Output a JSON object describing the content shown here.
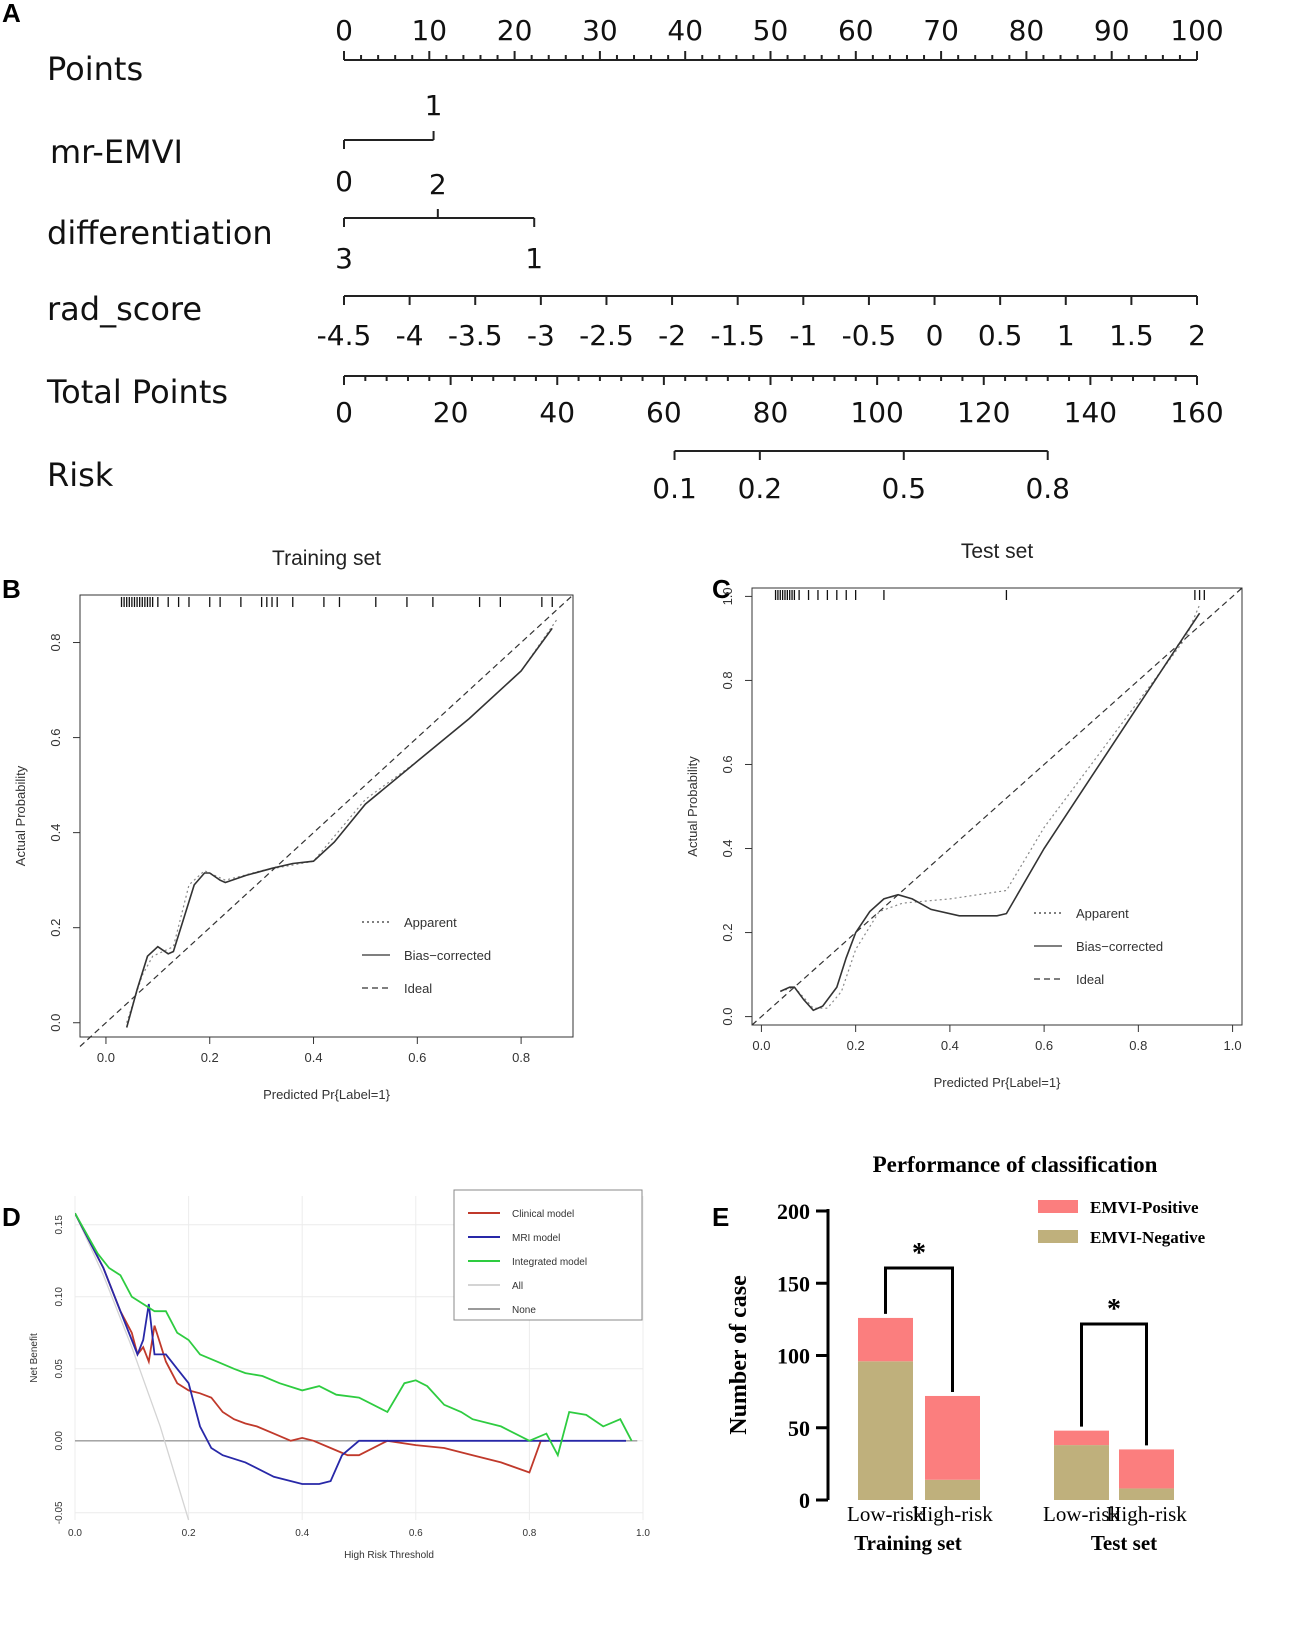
{
  "panels": {
    "a": "A",
    "b": "B",
    "c": "C",
    "d": "D",
    "e": "E"
  },
  "chart_data": [
    {
      "type": "nomogram",
      "rows": [
        {
          "label": "Points",
          "ticks": [
            "0",
            "10",
            "20",
            "30",
            "40",
            "50",
            "60",
            "70",
            "80",
            "90",
            "100"
          ]
        },
        {
          "label": "mr-EMVI",
          "above": [
            "1"
          ],
          "below": [
            "0"
          ]
        },
        {
          "label": "differentiation",
          "above": [
            "2"
          ],
          "below": [
            "3",
            "1"
          ]
        },
        {
          "label": "rad_score",
          "ticks": [
            "-4.5",
            "-4",
            "-3.5",
            "-3",
            "-2.5",
            "-2",
            "-1.5",
            "-1",
            "-0.5",
            "0",
            "0.5",
            "1",
            "1.5",
            "2"
          ]
        },
        {
          "label": "Total Points",
          "ticks": [
            "0",
            "20",
            "40",
            "60",
            "80",
            "100",
            "120",
            "140",
            "160"
          ]
        },
        {
          "label": "Risk",
          "ticks": [
            "0.1",
            "0.2",
            "0.5",
            "0.8"
          ]
        }
      ],
      "points_range": [
        0,
        100
      ],
      "mr_emvi_points": {
        "0": 0,
        "1": 10.5
      },
      "differentiation_points": {
        "3": 0,
        "2": 11,
        "1": 22.3
      },
      "total_points_range": [
        0,
        160
      ],
      "risk_total_points": {
        "0.1": 62,
        "0.2": 78,
        "0.5": 105,
        "0.8": 132
      }
    },
    {
      "type": "line",
      "title": "Training set",
      "xlabel": "Predicted Pr{Label=1}",
      "ylabel": "Actual Probability",
      "xlim": [
        -0.05,
        0.9
      ],
      "ylim": [
        -0.03,
        0.9
      ],
      "xticks": [
        "0.0",
        "0.2",
        "0.4",
        "0.6",
        "0.8"
      ],
      "yticks": [
        "0.0",
        "0.2",
        "0.4",
        "0.6",
        "0.8"
      ],
      "legend": [
        "Apparent",
        "Bias−corrected",
        "Ideal"
      ],
      "series": [
        {
          "name": "Apparent",
          "style": "dotted",
          "x": [
            0.04,
            0.07,
            0.09,
            0.11,
            0.13,
            0.16,
            0.19,
            0.23,
            0.3,
            0.4,
            0.5,
            0.6,
            0.7,
            0.8,
            0.87
          ],
          "y": [
            0.0,
            0.1,
            0.14,
            0.15,
            0.16,
            0.29,
            0.32,
            0.3,
            0.32,
            0.34,
            0.47,
            0.55,
            0.64,
            0.74,
            0.85
          ]
        },
        {
          "name": "Bias-corrected",
          "style": "solid",
          "x": [
            0.04,
            0.06,
            0.08,
            0.1,
            0.12,
            0.13,
            0.15,
            0.17,
            0.19,
            0.2,
            0.22,
            0.23,
            0.27,
            0.32,
            0.36,
            0.4,
            0.44,
            0.5,
            0.6,
            0.7,
            0.8,
            0.86
          ],
          "y": [
            -0.01,
            0.07,
            0.14,
            0.16,
            0.145,
            0.15,
            0.22,
            0.29,
            0.315,
            0.315,
            0.3,
            0.295,
            0.31,
            0.325,
            0.335,
            0.34,
            0.38,
            0.46,
            0.55,
            0.64,
            0.74,
            0.83
          ]
        },
        {
          "name": "Ideal",
          "style": "dashed",
          "x": [
            -0.05,
            0.9
          ],
          "y": [
            -0.05,
            0.9
          ]
        }
      ],
      "rug": [
        0.03,
        0.035,
        0.04,
        0.045,
        0.05,
        0.055,
        0.06,
        0.065,
        0.07,
        0.075,
        0.08,
        0.085,
        0.09,
        0.1,
        0.12,
        0.14,
        0.16,
        0.2,
        0.22,
        0.26,
        0.3,
        0.31,
        0.32,
        0.33,
        0.36,
        0.42,
        0.45,
        0.52,
        0.58,
        0.63,
        0.72,
        0.76,
        0.84,
        0.86
      ]
    },
    {
      "type": "line",
      "title": "Test set",
      "xlabel": "Predicted Pr{Label=1}",
      "ylabel": "Actual Probability",
      "xlim": [
        -0.02,
        1.02
      ],
      "ylim": [
        -0.02,
        1.02
      ],
      "xticks": [
        "0.0",
        "0.2",
        "0.4",
        "0.6",
        "0.8",
        "1.0"
      ],
      "yticks": [
        "0.0",
        "0.2",
        "0.4",
        "0.6",
        "0.8",
        "1.0"
      ],
      "legend": [
        "Apparent",
        "Bias−corrected",
        "Ideal"
      ],
      "series": [
        {
          "name": "Apparent",
          "style": "dotted",
          "x": [
            0.04,
            0.07,
            0.11,
            0.14,
            0.17,
            0.2,
            0.25,
            0.3,
            0.4,
            0.52,
            0.6,
            0.7,
            0.8,
            0.9,
            0.93
          ],
          "y": [
            0.06,
            0.07,
            0.02,
            0.02,
            0.06,
            0.16,
            0.25,
            0.27,
            0.28,
            0.3,
            0.45,
            0.6,
            0.75,
            0.9,
            0.98
          ]
        },
        {
          "name": "Bias-corrected",
          "style": "solid",
          "x": [
            0.04,
            0.06,
            0.07,
            0.09,
            0.11,
            0.13,
            0.16,
            0.18,
            0.2,
            0.23,
            0.26,
            0.29,
            0.32,
            0.36,
            0.42,
            0.5,
            0.52,
            0.6,
            0.7,
            0.8,
            0.9,
            0.93
          ],
          "y": [
            0.06,
            0.07,
            0.07,
            0.04,
            0.015,
            0.025,
            0.07,
            0.14,
            0.2,
            0.25,
            0.28,
            0.29,
            0.28,
            0.255,
            0.24,
            0.24,
            0.245,
            0.4,
            0.57,
            0.74,
            0.91,
            0.96
          ]
        },
        {
          "name": "Ideal",
          "style": "dashed",
          "x": [
            -0.02,
            1.02
          ],
          "y": [
            -0.02,
            1.02
          ]
        }
      ],
      "rug": [
        0.03,
        0.035,
        0.04,
        0.045,
        0.05,
        0.055,
        0.06,
        0.065,
        0.07,
        0.08,
        0.1,
        0.12,
        0.14,
        0.16,
        0.18,
        0.2,
        0.26,
        0.52,
        0.92,
        0.93,
        0.94
      ]
    },
    {
      "type": "line",
      "title": "",
      "xlabel": "High Risk Threshold",
      "ylabel": "Net Benefit",
      "xlim": [
        0,
        1
      ],
      "ylim": [
        -0.055,
        0.17
      ],
      "xticks": [
        "0.0",
        "0.2",
        "0.4",
        "0.6",
        "0.8",
        "1.0"
      ],
      "yticks": [
        "-0.05",
        "0.00",
        "0.05",
        "0.10",
        "0.15"
      ],
      "ytickvals": [
        -0.05,
        0,
        0.05,
        0.1,
        0.15
      ],
      "legend": [
        "Clinical model",
        "MRI model",
        "Integrated model",
        "All",
        "None"
      ],
      "series": [
        {
          "name": "Clinical model",
          "color": "#c0392b",
          "x": [
            0.0,
            0.05,
            0.08,
            0.1,
            0.11,
            0.12,
            0.13,
            0.14,
            0.16,
            0.18,
            0.2,
            0.22,
            0.24,
            0.26,
            0.28,
            0.3,
            0.32,
            0.35,
            0.38,
            0.4,
            0.42,
            0.45,
            0.48,
            0.5,
            0.55,
            0.6,
            0.65,
            0.7,
            0.75,
            0.8,
            0.82,
            0.83
          ],
          "y": [
            0.158,
            0.12,
            0.09,
            0.075,
            0.06,
            0.065,
            0.055,
            0.08,
            0.055,
            0.04,
            0.035,
            0.033,
            0.03,
            0.02,
            0.015,
            0.012,
            0.01,
            0.005,
            0.0,
            0.002,
            0.0,
            -0.005,
            -0.01,
            -0.01,
            0.0,
            -0.003,
            -0.005,
            -0.01,
            -0.015,
            -0.022,
            0.0,
            0.0
          ]
        },
        {
          "name": "MRI model",
          "color": "#2828a8",
          "x": [
            0.0,
            0.05,
            0.08,
            0.1,
            0.11,
            0.12,
            0.13,
            0.14,
            0.16,
            0.18,
            0.2,
            0.22,
            0.24,
            0.26,
            0.3,
            0.35,
            0.4,
            0.43,
            0.45,
            0.47,
            0.5,
            0.6,
            0.7,
            0.8,
            0.9,
            0.97
          ],
          "y": [
            0.158,
            0.12,
            0.09,
            0.07,
            0.06,
            0.07,
            0.095,
            0.06,
            0.06,
            0.05,
            0.04,
            0.01,
            -0.005,
            -0.01,
            -0.015,
            -0.025,
            -0.03,
            -0.03,
            -0.028,
            -0.01,
            0.0,
            0.0,
            0.0,
            0.0,
            0.0,
            0.0
          ]
        },
        {
          "name": "Integrated model",
          "color": "#2ecc40",
          "x": [
            0.0,
            0.04,
            0.06,
            0.08,
            0.1,
            0.12,
            0.14,
            0.16,
            0.18,
            0.2,
            0.22,
            0.25,
            0.28,
            0.3,
            0.33,
            0.36,
            0.4,
            0.43,
            0.46,
            0.5,
            0.55,
            0.58,
            0.6,
            0.62,
            0.65,
            0.68,
            0.7,
            0.75,
            0.8,
            0.83,
            0.85,
            0.87,
            0.9,
            0.93,
            0.96,
            0.98
          ],
          "y": [
            0.158,
            0.13,
            0.12,
            0.115,
            0.1,
            0.095,
            0.09,
            0.09,
            0.075,
            0.07,
            0.06,
            0.055,
            0.05,
            0.047,
            0.045,
            0.04,
            0.035,
            0.038,
            0.032,
            0.03,
            0.02,
            0.04,
            0.042,
            0.038,
            0.025,
            0.02,
            0.015,
            0.01,
            0.0,
            0.005,
            -0.01,
            0.02,
            0.018,
            0.01,
            0.015,
            0.0
          ]
        },
        {
          "name": "All",
          "color": "#d4d4d4",
          "x": [
            0.0,
            0.05,
            0.1,
            0.15,
            0.2
          ],
          "y": [
            0.158,
            0.115,
            0.065,
            0.01,
            -0.055
          ]
        },
        {
          "name": "None",
          "color": "#9a9a9a",
          "x": [
            0.0,
            0.99
          ],
          "y": [
            0.0,
            0.0
          ]
        }
      ]
    },
    {
      "type": "bar",
      "stacked": true,
      "title": "Performance of classification",
      "ylabel": "Number of case",
      "ylim": [
        0,
        200
      ],
      "yticks": [
        "0",
        "50",
        "100",
        "150",
        "200"
      ],
      "categories": [
        "Low-risk",
        "High-risk",
        "Low-risk",
        "High-risk"
      ],
      "groups": [
        "Training set",
        "Test set"
      ],
      "significance": [
        "*",
        "*"
      ],
      "series": [
        {
          "name": "EMVI-Negative",
          "color": "#bfb07c",
          "values": [
            96,
            14,
            38,
            8
          ]
        },
        {
          "name": "EMVI-Positive",
          "color": "#fb7e7e",
          "values": [
            30,
            58,
            10,
            27
          ]
        }
      ],
      "legend": [
        "EMVI-Positive",
        "EMVI-Negative"
      ]
    }
  ]
}
